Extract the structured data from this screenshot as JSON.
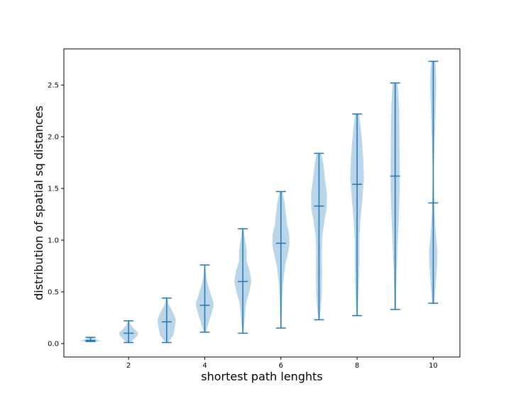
{
  "chart_data": {
    "type": "violin",
    "title": "",
    "xlabel": "shortest path lenghts",
    "ylabel": "distribution of spatial sq distances",
    "xlim": [
      0.3,
      10.7
    ],
    "ylim": [
      -0.13,
      2.85
    ],
    "x_ticks": [
      2,
      4,
      6,
      8,
      10
    ],
    "y_ticks": [
      0.0,
      0.5,
      1.0,
      1.5,
      2.0,
      2.5
    ],
    "x_tick_labels": [
      "2",
      "4",
      "6",
      "8",
      "10"
    ],
    "y_tick_labels": [
      "0.0",
      "0.5",
      "1.0",
      "1.5",
      "2.0",
      "2.5"
    ],
    "grid": false,
    "colors": {
      "body": "#1f77b4",
      "lines": "#1f77b4"
    },
    "violins": [
      {
        "x": 1,
        "min": 0.02,
        "median": 0.03,
        "max": 0.06,
        "profile": [
          [
            0.02,
            0.3
          ],
          [
            0.025,
            0.6
          ],
          [
            0.03,
            0.45
          ],
          [
            0.04,
            0.3
          ],
          [
            0.05,
            0.2
          ],
          [
            0.06,
            0.1
          ]
        ]
      },
      {
        "x": 2,
        "min": 0.01,
        "median": 0.1,
        "max": 0.22,
        "profile": [
          [
            0.01,
            0.1
          ],
          [
            0.03,
            0.22
          ],
          [
            0.06,
            0.38
          ],
          [
            0.09,
            0.5
          ],
          [
            0.11,
            0.48
          ],
          [
            0.14,
            0.3
          ],
          [
            0.18,
            0.12
          ],
          [
            0.22,
            0.02
          ]
        ]
      },
      {
        "x": 3,
        "min": 0.01,
        "median": 0.21,
        "max": 0.44,
        "profile": [
          [
            0.01,
            0.05
          ],
          [
            0.04,
            0.2
          ],
          [
            0.08,
            0.35
          ],
          [
            0.13,
            0.4
          ],
          [
            0.18,
            0.45
          ],
          [
            0.23,
            0.48
          ],
          [
            0.28,
            0.38
          ],
          [
            0.33,
            0.25
          ],
          [
            0.38,
            0.1
          ],
          [
            0.44,
            0.03
          ]
        ]
      },
      {
        "x": 4,
        "min": 0.11,
        "median": 0.37,
        "max": 0.76,
        "profile": [
          [
            0.11,
            0.05
          ],
          [
            0.15,
            0.12
          ],
          [
            0.2,
            0.2
          ],
          [
            0.27,
            0.32
          ],
          [
            0.32,
            0.4
          ],
          [
            0.36,
            0.46
          ],
          [
            0.4,
            0.46
          ],
          [
            0.45,
            0.36
          ],
          [
            0.5,
            0.28
          ],
          [
            0.56,
            0.18
          ],
          [
            0.62,
            0.1
          ],
          [
            0.68,
            0.06
          ],
          [
            0.76,
            0.02
          ]
        ]
      },
      {
        "x": 5,
        "min": 0.1,
        "median": 0.6,
        "max": 1.11,
        "profile": [
          [
            0.1,
            0.02
          ],
          [
            0.2,
            0.08
          ],
          [
            0.3,
            0.12
          ],
          [
            0.4,
            0.18
          ],
          [
            0.5,
            0.34
          ],
          [
            0.6,
            0.45
          ],
          [
            0.7,
            0.36
          ],
          [
            0.8,
            0.2
          ],
          [
            0.9,
            0.2
          ],
          [
            1.0,
            0.12
          ],
          [
            1.11,
            0.03
          ]
        ]
      },
      {
        "x": 6,
        "min": 0.15,
        "median": 0.97,
        "max": 1.47,
        "profile": [
          [
            0.15,
            0.02
          ],
          [
            0.3,
            0.05
          ],
          [
            0.45,
            0.07
          ],
          [
            0.6,
            0.12
          ],
          [
            0.75,
            0.22
          ],
          [
            0.85,
            0.34
          ],
          [
            0.95,
            0.45
          ],
          [
            1.05,
            0.44
          ],
          [
            1.15,
            0.32
          ],
          [
            1.25,
            0.26
          ],
          [
            1.35,
            0.2
          ],
          [
            1.47,
            0.08
          ]
        ]
      },
      {
        "x": 7,
        "min": 0.23,
        "median": 1.33,
        "max": 1.84,
        "profile": [
          [
            0.23,
            0.03
          ],
          [
            0.35,
            0.1
          ],
          [
            0.5,
            0.15
          ],
          [
            0.7,
            0.16
          ],
          [
            0.9,
            0.15
          ],
          [
            1.05,
            0.18
          ],
          [
            1.2,
            0.3
          ],
          [
            1.3,
            0.4
          ],
          [
            1.45,
            0.42
          ],
          [
            1.55,
            0.34
          ],
          [
            1.65,
            0.28
          ],
          [
            1.75,
            0.22
          ],
          [
            1.84,
            0.12
          ]
        ]
      },
      {
        "x": 8,
        "min": 0.27,
        "median": 1.54,
        "max": 2.22,
        "profile": [
          [
            0.27,
            0.03
          ],
          [
            0.4,
            0.06
          ],
          [
            0.6,
            0.1
          ],
          [
            0.8,
            0.12
          ],
          [
            1.0,
            0.12
          ],
          [
            1.2,
            0.18
          ],
          [
            1.4,
            0.28
          ],
          [
            1.6,
            0.36
          ],
          [
            1.8,
            0.32
          ],
          [
            1.95,
            0.26
          ],
          [
            2.1,
            0.18
          ],
          [
            2.22,
            0.1
          ]
        ]
      },
      {
        "x": 9,
        "min": 0.33,
        "median": 1.62,
        "max": 2.52,
        "profile": [
          [
            0.33,
            0.04
          ],
          [
            0.5,
            0.05
          ],
          [
            0.75,
            0.09
          ],
          [
            1.0,
            0.14
          ],
          [
            1.25,
            0.2
          ],
          [
            1.5,
            0.24
          ],
          [
            1.7,
            0.24
          ],
          [
            1.9,
            0.23
          ],
          [
            2.1,
            0.22
          ],
          [
            2.3,
            0.2
          ],
          [
            2.45,
            0.16
          ],
          [
            2.52,
            0.12
          ]
        ]
      },
      {
        "x": 10,
        "min": 0.39,
        "median": 1.36,
        "max": 2.73,
        "profile": [
          [
            0.39,
            0.06
          ],
          [
            0.55,
            0.12
          ],
          [
            0.75,
            0.2
          ],
          [
            0.9,
            0.22
          ],
          [
            1.1,
            0.12
          ],
          [
            1.3,
            0.06
          ],
          [
            1.5,
            0.04
          ],
          [
            1.7,
            0.03
          ],
          [
            1.9,
            0.06
          ],
          [
            2.1,
            0.1
          ],
          [
            2.3,
            0.13
          ],
          [
            2.5,
            0.16
          ],
          [
            2.65,
            0.14
          ],
          [
            2.73,
            0.1
          ]
        ]
      }
    ]
  }
}
